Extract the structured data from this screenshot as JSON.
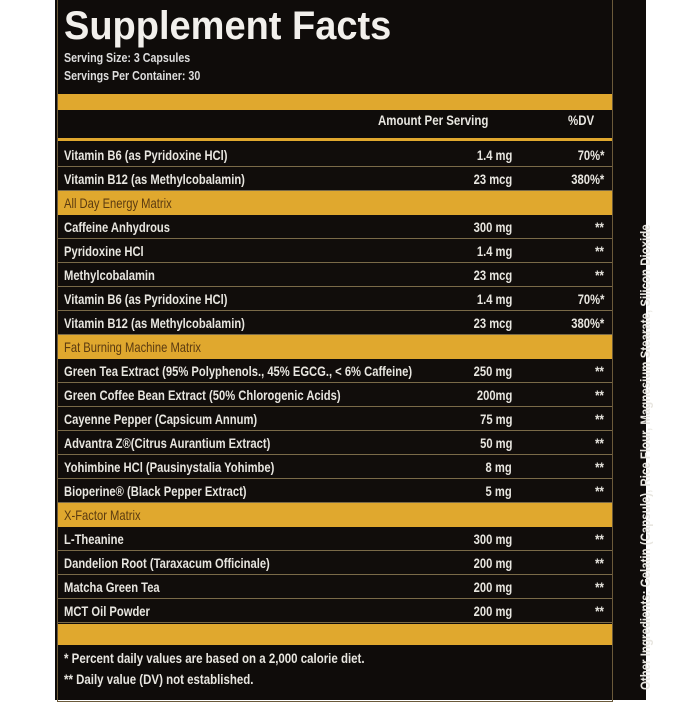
{
  "title": "Supplement Facts",
  "serving_size": "Serving Size: 3 Capsules",
  "servings_per_container": "Servings Per Container: 30",
  "header": {
    "amount": "Amount Per Serving",
    "dv": "%DV"
  },
  "rows": [
    {
      "name": "Vitamin B6 (as Pyridoxine HCl)",
      "amount": "1.4 mg",
      "dv": "70%*"
    },
    {
      "name": "Vitamin B12 (as Methylcobalamin)",
      "amount": "23 mcg",
      "dv": "380%*"
    },
    {
      "section": "All Day Energy Matrix"
    },
    {
      "name": "Caffeine Anhydrous",
      "amount": "300 mg",
      "dv": "**"
    },
    {
      "name": "Pyridoxine HCl",
      "amount": "1.4 mg",
      "dv": "**"
    },
    {
      "name": "Methylcobalamin",
      "amount": "23 mcg",
      "dv": "**"
    },
    {
      "name": "Vitamin B6 (as Pyridoxine HCl)",
      "amount": "1.4 mg",
      "dv": "70%*"
    },
    {
      "name": "Vitamin B12 (as Methylcobalamin)",
      "amount": "23 mcg",
      "dv": "380%*"
    },
    {
      "section": "Fat Burning Machine Matrix"
    },
    {
      "name": "Green Tea Extract (95% Polyphenols., 45% EGCG., < 6% Caffeine)",
      "amount": "250 mg",
      "dv": "**"
    },
    {
      "name": "Green Coffee Bean Extract (50% Chlorogenic Acids)",
      "amount": "200mg",
      "dv": "**"
    },
    {
      "name": "Cayenne Pepper (Capsicum Annum)",
      "amount": "75 mg",
      "dv": "**"
    },
    {
      "name": "Advantra Z®(Citrus Aurantium Extract)",
      "amount": "50 mg",
      "dv": "**"
    },
    {
      "name": "Yohimbine HCl (Pausinystalia Yohimbe)",
      "amount": "8 mg",
      "dv": "**"
    },
    {
      "name": "Bioperine® (Black Pepper Extract)",
      "amount": "5 mg",
      "dv": "**"
    },
    {
      "section": "X-Factor Matrix"
    },
    {
      "name": "L-Theanine",
      "amount": "300 mg",
      "dv": "**"
    },
    {
      "name": "Dandelion Root (Taraxacum Officinale)",
      "amount": "200 mg",
      "dv": "**"
    },
    {
      "name": "Matcha Green Tea",
      "amount": "200 mg",
      "dv": "**"
    },
    {
      "name": "MCT Oil Powder",
      "amount": "200 mg",
      "dv": "**"
    }
  ],
  "footnotes": [
    "* Percent daily values are based on a 2,000 calorie diet.",
    "** Daily value (DV) not established."
  ],
  "other_ingredients": "Other Ingredients: Gelatin (Capsule), Rice Flour, Magnesium Stearate, Silicon Dioxide",
  "colors": {
    "background": "#0f0c0a",
    "accent": "#e0a82e",
    "text": "#e8e6e0"
  }
}
